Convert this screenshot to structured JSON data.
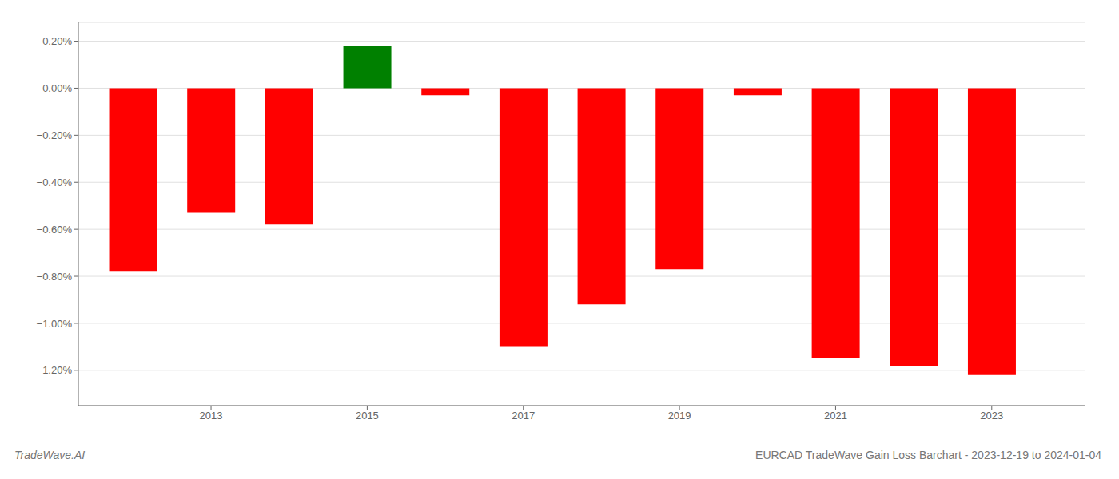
{
  "chart_data": {
    "type": "bar",
    "x": [
      2012,
      2013,
      2014,
      2015,
      2016,
      2017,
      2018,
      2019,
      2020,
      2021,
      2022,
      2023
    ],
    "values": [
      -0.0078,
      -0.0053,
      -0.0058,
      0.0018,
      -0.0003,
      -0.011,
      -0.0092,
      -0.0077,
      -0.0003,
      -0.0115,
      -0.0118,
      -0.0122
    ],
    "colors": [
      "#ff0000",
      "#ff0000",
      "#ff0000",
      "#008000",
      "#ff0000",
      "#ff0000",
      "#ff0000",
      "#ff0000",
      "#ff0000",
      "#ff0000",
      "#ff0000",
      "#ff0000"
    ],
    "xlim": [
      2011.3,
      2024.2
    ],
    "xticks": [
      2013,
      2015,
      2017,
      2019,
      2021,
      2023
    ],
    "ylim": [
      -0.0135,
      0.0028
    ],
    "yticks": [
      {
        "value": -0.012,
        "label": "−1.20%"
      },
      {
        "value": -0.01,
        "label": "−1.00%"
      },
      {
        "value": -0.008,
        "label": "−0.80%"
      },
      {
        "value": -0.006,
        "label": "−0.60%"
      },
      {
        "value": -0.004,
        "label": "−0.40%"
      },
      {
        "value": -0.002,
        "label": "−0.20%"
      },
      {
        "value": 0.0,
        "label": "0.00%"
      },
      {
        "value": 0.002,
        "label": "0.20%"
      }
    ],
    "grid": "y",
    "annotations": [
      "TradeWave.AI",
      "EURCAD TradeWave Gain Loss Barchart - 2023-12-19 to 2024-01-04"
    ]
  }
}
